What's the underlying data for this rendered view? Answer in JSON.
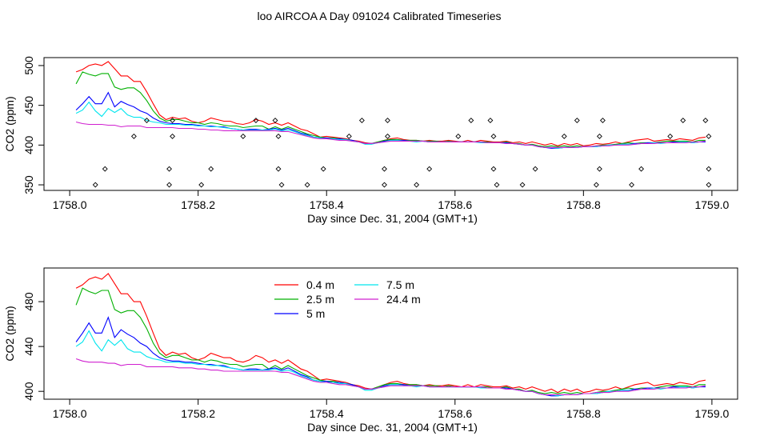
{
  "title": "loo AIRCOA A  Day 091024  Calibrated Timeseries",
  "colors": {
    "0.4 m": "#ff0000",
    "2.5 m": "#00b000",
    "5 m": "#0000ff",
    "7.5 m": "#00e5ee",
    "24.4 m": "#d020d0",
    "flag": "#000000",
    "axis": "#000000"
  },
  "chart_data": [
    {
      "type": "line",
      "panel": "top",
      "xlabel": "Day since Dec. 31, 2004 (GMT+1)",
      "ylabel": "CO2 (ppm)",
      "xlim": [
        1757.96,
        1759.04
      ],
      "ylim": [
        343,
        510
      ],
      "xticks": [
        "1758.0",
        "1758.2",
        "1758.4",
        "1758.6",
        "1758.8",
        "1759.0"
      ],
      "yticks": [
        "350",
        "400",
        "450",
        "500"
      ],
      "legend": "none",
      "x": [
        1758.01,
        1758.02,
        1758.03,
        1758.04,
        1758.05,
        1758.06,
        1758.07,
        1758.08,
        1758.09,
        1758.1,
        1758.11,
        1758.12,
        1758.13,
        1758.14,
        1758.15,
        1758.16,
        1758.17,
        1758.18,
        1758.19,
        1758.2,
        1758.21,
        1758.22,
        1758.23,
        1758.24,
        1758.25,
        1758.26,
        1758.27,
        1758.28,
        1758.29,
        1758.3,
        1758.31,
        1758.32,
        1758.33,
        1758.34,
        1758.35,
        1758.36,
        1758.37,
        1758.38,
        1758.39,
        1758.4,
        1758.41,
        1758.42,
        1758.43,
        1758.44,
        1758.45,
        1758.46,
        1758.47,
        1758.48,
        1758.49,
        1758.5,
        1758.51,
        1758.52,
        1758.53,
        1758.54,
        1758.55,
        1758.56,
        1758.57,
        1758.58,
        1758.59,
        1758.6,
        1758.61,
        1758.62,
        1758.63,
        1758.64,
        1758.65,
        1758.66,
        1758.67,
        1758.68,
        1758.69,
        1758.7,
        1758.71,
        1758.72,
        1758.73,
        1758.74,
        1758.75,
        1758.76,
        1758.77,
        1758.78,
        1758.79,
        1758.8,
        1758.81,
        1758.82,
        1758.83,
        1758.84,
        1758.85,
        1758.86,
        1758.87,
        1758.88,
        1758.89,
        1758.9,
        1758.91,
        1758.92,
        1758.93,
        1758.94,
        1758.95,
        1758.96,
        1758.97,
        1758.98,
        1758.99
      ],
      "series": [
        {
          "name": "0.4 m",
          "values": [
            492,
            495,
            500,
            502,
            500,
            505,
            496,
            487,
            487,
            480,
            480,
            467,
            452,
            438,
            432,
            435,
            433,
            434,
            430,
            428,
            430,
            434,
            432,
            430,
            430,
            427,
            426,
            428,
            432,
            430,
            426,
            428,
            425,
            428,
            424,
            420,
            418,
            414,
            410,
            411,
            410,
            409,
            408,
            406,
            405,
            403,
            402,
            404,
            406,
            408,
            409,
            407,
            406,
            406,
            405,
            406,
            405,
            405,
            406,
            405,
            404,
            406,
            404,
            406,
            405,
            404,
            404,
            405,
            403,
            404,
            402,
            404,
            402,
            400,
            402,
            399,
            402,
            400,
            402,
            399,
            400,
            402,
            401,
            402,
            404,
            402,
            404,
            406,
            407,
            408,
            405,
            406,
            407,
            406,
            408,
            407,
            406,
            409,
            410
          ]
        },
        {
          "name": "2.5 m",
          "values": [
            477,
            492,
            489,
            487,
            490,
            490,
            473,
            470,
            472,
            472,
            466,
            456,
            443,
            434,
            430,
            432,
            432,
            430,
            428,
            428,
            426,
            428,
            427,
            425,
            424,
            424,
            422,
            423,
            424,
            424,
            420,
            423,
            420,
            423,
            420,
            417,
            414,
            412,
            410,
            409,
            409,
            408,
            407,
            406,
            404,
            402,
            402,
            404,
            406,
            407,
            407,
            406,
            406,
            406,
            405,
            405,
            405,
            404,
            405,
            404,
            404,
            404,
            404,
            404,
            404,
            403,
            403,
            404,
            402,
            402,
            400,
            401,
            399,
            398,
            399,
            398,
            399,
            398,
            399,
            398,
            398,
            399,
            400,
            400,
            401,
            402,
            403,
            402,
            403,
            403,
            403,
            404,
            405,
            405,
            405,
            405,
            404,
            406,
            406
          ]
        },
        {
          "name": "5 m",
          "values": [
            444,
            452,
            461,
            452,
            452,
            466,
            448,
            455,
            451,
            448,
            443,
            440,
            434,
            430,
            428,
            427,
            427,
            426,
            426,
            425,
            424,
            424,
            423,
            423,
            421,
            420,
            419,
            420,
            420,
            419,
            420,
            421,
            419,
            421,
            418,
            415,
            413,
            410,
            409,
            409,
            408,
            408,
            407,
            406,
            404,
            402,
            402,
            403,
            405,
            406,
            406,
            406,
            405,
            405,
            405,
            404,
            404,
            404,
            404,
            404,
            404,
            404,
            404,
            404,
            403,
            403,
            403,
            403,
            402,
            401,
            400,
            400,
            398,
            397,
            396,
            396,
            397,
            397,
            397,
            398,
            398,
            398,
            399,
            400,
            400,
            401,
            401,
            402,
            402,
            403,
            403,
            403,
            403,
            404,
            404,
            404,
            403,
            404,
            404
          ]
        },
        {
          "name": "7.5 m",
          "values": [
            440,
            444,
            454,
            443,
            436,
            446,
            441,
            446,
            438,
            435,
            435,
            431,
            429,
            428,
            426,
            426,
            426,
            425,
            425,
            424,
            424,
            423,
            423,
            422,
            421,
            420,
            419,
            419,
            419,
            419,
            419,
            420,
            418,
            419,
            417,
            414,
            412,
            410,
            409,
            408,
            408,
            407,
            407,
            405,
            404,
            401,
            401,
            403,
            404,
            406,
            406,
            405,
            405,
            404,
            405,
            404,
            404,
            404,
            404,
            404,
            404,
            404,
            404,
            403,
            403,
            403,
            403,
            402,
            402,
            401,
            400,
            400,
            398,
            397,
            397,
            396,
            397,
            397,
            397,
            398,
            398,
            398,
            399,
            400,
            400,
            401,
            401,
            401,
            402,
            402,
            403,
            402,
            403,
            403,
            404,
            404,
            403,
            404,
            405
          ]
        },
        {
          "name": "24.4 m",
          "values": [
            429,
            427,
            426,
            426,
            426,
            425,
            425,
            423,
            424,
            424,
            424,
            422,
            422,
            422,
            422,
            422,
            421,
            421,
            421,
            420,
            420,
            419,
            419,
            418,
            418,
            418,
            418,
            418,
            418,
            418,
            418,
            418,
            417,
            417,
            415,
            413,
            411,
            409,
            408,
            408,
            407,
            406,
            406,
            405,
            404,
            402,
            402,
            403,
            404,
            405,
            405,
            405,
            405,
            405,
            405,
            404,
            404,
            404,
            404,
            404,
            404,
            404,
            404,
            404,
            403,
            403,
            403,
            402,
            402,
            401,
            400,
            400,
            398,
            397,
            397,
            397,
            397,
            397,
            397,
            398,
            398,
            399,
            399,
            399,
            400,
            400,
            400,
            401,
            402,
            402,
            402,
            403,
            403,
            403,
            403,
            403,
            404,
            404,
            405
          ]
        }
      ],
      "flags": {
        "x": [
          1758.04,
          1758.055,
          1758.1,
          1758.12,
          1758.155,
          1758.155,
          1758.16,
          1758.16,
          1758.205,
          1758.22,
          1758.27,
          1758.29,
          1758.32,
          1758.325,
          1758.325,
          1758.33,
          1758.37,
          1758.395,
          1758.435,
          1758.455,
          1758.49,
          1758.49,
          1758.495,
          1758.495,
          1758.54,
          1758.56,
          1758.605,
          1758.625,
          1758.655,
          1758.66,
          1758.66,
          1758.665,
          1758.705,
          1758.725,
          1758.77,
          1758.79,
          1758.82,
          1758.825,
          1758.825,
          1758.83,
          1758.875,
          1758.89,
          1758.935,
          1758.955,
          1758.99,
          1758.995,
          1758.995,
          1758.995
        ],
        "y": [
          350,
          370,
          411,
          431,
          350,
          370,
          411,
          431,
          350,
          370,
          411,
          431,
          431,
          411,
          370,
          350,
          350,
          370,
          411,
          431,
          350,
          370,
          411,
          431,
          350,
          370,
          411,
          431,
          431,
          411,
          370,
          350,
          350,
          370,
          411,
          431,
          350,
          370,
          411,
          431,
          350,
          370,
          411,
          431,
          431,
          411,
          370,
          350
        ]
      }
    },
    {
      "type": "line",
      "panel": "bottom",
      "xlabel": "Day since Dec. 31, 2004 (GMT+1)",
      "ylabel": "CO2 (ppm)",
      "xlim": [
        1757.96,
        1759.04
      ],
      "ylim": [
        393,
        510
      ],
      "xticks": [
        "1758.0",
        "1758.2",
        "1758.4",
        "1758.6",
        "1758.8",
        "1759.0"
      ],
      "yticks": [
        "400",
        "440",
        "480"
      ],
      "legend": "top-left",
      "legend_entries": [
        "0.4 m",
        "2.5 m",
        "5 m",
        "7.5 m",
        "24.4 m"
      ],
      "series_from": "top"
    }
  ]
}
